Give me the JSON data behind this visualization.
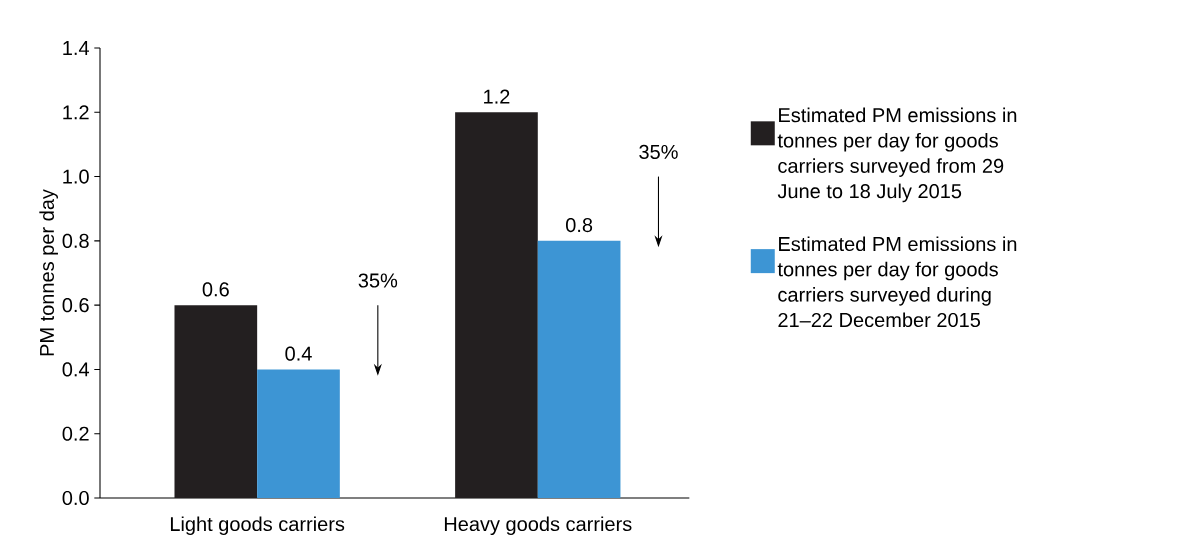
{
  "chart_data": {
    "type": "bar",
    "ylabel": "PM tonnes per day",
    "categories": [
      "Light goods carriers",
      "Heavy goods carriers"
    ],
    "series": [
      {
        "name": "Estimated PM emissions in tonnes per day for goods carriers surveyed from 29 June to 18 July 2015",
        "color": "#231f20",
        "values": [
          0.6,
          1.2
        ]
      },
      {
        "name": "Estimated PM emissions in tonnes per day for goods carriers surveyed during 21–22 December 2015",
        "color": "#3d95d4",
        "values": [
          0.4,
          0.8
        ]
      }
    ],
    "ylim": [
      0,
      1.4
    ],
    "yticks": [
      {
        "value": 0,
        "label": "0.0"
      },
      0.2,
      0.4,
      0.6,
      0.8,
      {
        "value": 1,
        "label": "1.0"
      },
      1.2,
      1.4
    ],
    "data_labels": true,
    "grid": false,
    "legend": "right",
    "annotations": [
      "35%",
      "35%"
    ]
  }
}
